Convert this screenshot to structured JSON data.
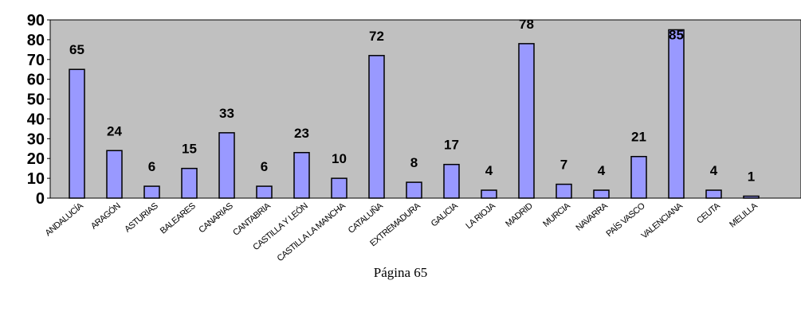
{
  "chart_data": {
    "type": "bar",
    "title": "",
    "xlabel": "",
    "ylabel": "",
    "categories": [
      "ANDALUCÍA",
      "ARAGÓN",
      "ASTURIAS",
      "BALEARES",
      "CANARIAS",
      "CANTABRIA",
      "CASTILLA Y LEÓN",
      "CASTILLA LA MANCHA",
      "CATALUÑA",
      "EXTREMADURA",
      "GALICIA",
      "LA RIOJA",
      "MADRID",
      "MURCIA",
      "NAVARRA",
      "PAÍS VASCO",
      "VALENCIANA",
      "CEUTA",
      "MELILLA"
    ],
    "values": [
      65,
      24,
      6,
      15,
      33,
      6,
      23,
      10,
      72,
      8,
      17,
      4,
      78,
      7,
      4,
      21,
      85,
      4,
      1
    ],
    "value_labels": [
      "65",
      "24",
      "6",
      "15",
      "33",
      "6",
      "23",
      "10",
      "72",
      "8",
      "17",
      "4",
      "78",
      "7",
      "4",
      "21",
      "85",
      "4",
      "1"
    ],
    "ylim": [
      0,
      90
    ],
    "yticks": [
      "0",
      "10",
      "20",
      "30",
      "40",
      "50",
      "60",
      "70",
      "80",
      "90"
    ],
    "grid": false,
    "legend": "none",
    "colors": {
      "plot_background": "#c0c0c0",
      "bar_fill": "#9999ff",
      "bar_stroke": "#000000"
    }
  },
  "footer": {
    "page_label": "Página 65"
  }
}
